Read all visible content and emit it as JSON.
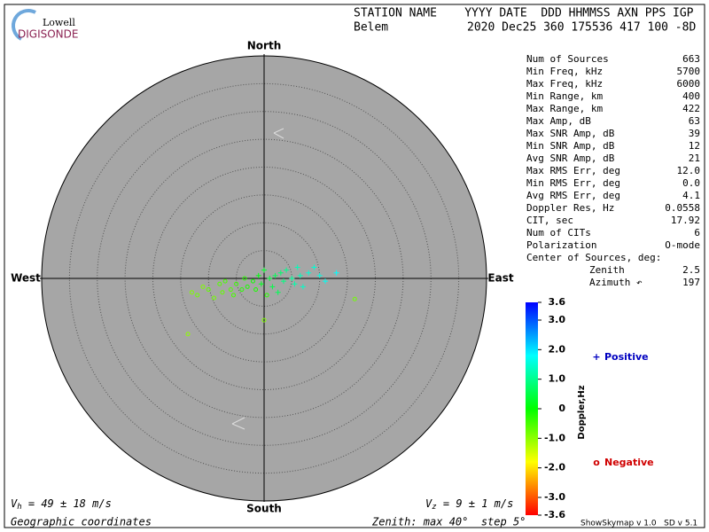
{
  "header": {
    "logo_top": "Lowell",
    "logo_bottom": "DIGISONDE",
    "columns": "STATION NAME    YYYY DATE  DDD HHMMSS AXN PPS IGP",
    "station": "Belem",
    "values": "2020 Dec25 360 175536 417 100 -8D"
  },
  "chart_data": {
    "type": "skymap",
    "directions": {
      "north": "North",
      "south": "South",
      "east": "East",
      "west": "West"
    },
    "rlim": [
      0,
      40
    ],
    "rticks": [
      5,
      10,
      15,
      20,
      25,
      30,
      35
    ],
    "points": {
      "x": [
        -13.7,
        -13,
        -12,
        -11,
        -10,
        -9,
        -8,
        -7.5,
        -7,
        -6,
        -5.5,
        -5,
        -4,
        -3.5,
        -3,
        -2,
        -1.5,
        -1,
        -0.5,
        0,
        0.5,
        1,
        1.5,
        2,
        2.5,
        3,
        3.5,
        4,
        5,
        5.5,
        6,
        6.5,
        7,
        8,
        9,
        10,
        11,
        13,
        16.3,
        0
      ],
      "y": [
        -10,
        -2.5,
        -3,
        -1.5,
        -2,
        -3.5,
        -1,
        -2.5,
        -0.5,
        -2,
        -3,
        -1,
        -2,
        0,
        -1.5,
        -0.5,
        -2,
        0.5,
        -1,
        1.5,
        -3,
        0,
        -1.5,
        0.5,
        -2.5,
        1,
        -0.5,
        1.5,
        0,
        -1,
        2,
        0.5,
        -1.5,
        1,
        2,
        0.5,
        -0.5,
        1,
        -3.7,
        -7.5
      ],
      "doppler": [
        -1,
        -0.9,
        -0.8,
        -0.9,
        -0.7,
        -0.8,
        -0.6,
        -0.7,
        -0.5,
        -0.6,
        -0.5,
        -0.4,
        -0.3,
        -0.3,
        -0.2,
        -0.1,
        -0.2,
        0.1,
        0.2,
        0.3,
        -0.3,
        0.4,
        0.5,
        0.6,
        0.6,
        0.8,
        0.9,
        1.0,
        1.1,
        1.2,
        1.3,
        1.3,
        1.4,
        1.5,
        1.5,
        1.6,
        1.7,
        1.8,
        -0.8,
        -0.9
      ]
    },
    "stats": [
      [
        "Num of Sources",
        "663"
      ],
      [
        "Min Freq, kHz",
        "5700"
      ],
      [
        "Max Freq, kHz",
        "6000"
      ],
      [
        "Min Range, km",
        "400"
      ],
      [
        "Max Range, km",
        "422"
      ],
      [
        "Max Amp, dB",
        "63"
      ],
      [
        "Max SNR Amp, dB",
        "39"
      ],
      [
        "Min SNR Amp, dB",
        "12"
      ],
      [
        "Avg SNR Amp, dB",
        "21"
      ],
      [
        "Max RMS Err, deg",
        "12.0"
      ],
      [
        "Min RMS Err, deg",
        "0.0"
      ],
      [
        "Avg RMS Err, deg",
        "4.1"
      ],
      [
        "Doppler Res, Hz",
        "0.0558"
      ],
      [
        "CIT, sec",
        "17.92"
      ],
      [
        "Num of CITs",
        "6"
      ],
      [
        "Polarization",
        "O-mode"
      ]
    ],
    "center_title": "Center of Sources, deg:",
    "center": [
      [
        "Zenith",
        "2.5"
      ],
      [
        "Azimuth ↶",
        "197"
      ]
    ],
    "colorbar": {
      "title": "Doppler,Hz",
      "clim": [
        -3.6,
        3.6
      ],
      "ticks": [
        3.6,
        {
          "value": 3,
          "label": "3.0"
        },
        {
          "value": 2,
          "label": "2.0"
        },
        {
          "value": 1,
          "label": "1.0"
        },
        0,
        {
          "value": -1,
          "label": "-1.0"
        },
        {
          "value": -2,
          "label": "-2.0"
        },
        {
          "value": -3,
          "label": "-3.0"
        },
        -3.6
      ]
    },
    "legend": [
      {
        "name": "Positive",
        "marker": "+",
        "color": "#0000c0"
      },
      {
        "name": "Negative",
        "marker": "o",
        "color": "#d00000"
      }
    ],
    "vh": {
      "symbol": "V",
      "sub": "h",
      "text": " = 49 ± 18 m/s"
    },
    "vz": {
      "symbol": "V",
      "sub": "z",
      "text": " = 9 ± 1 m/s"
    },
    "coords": "Geographic coordinates",
    "zenith_note": "Zenith: max 40°  step 5°",
    "version": "ShowSkymap v 1.0   SD v 5.1"
  }
}
